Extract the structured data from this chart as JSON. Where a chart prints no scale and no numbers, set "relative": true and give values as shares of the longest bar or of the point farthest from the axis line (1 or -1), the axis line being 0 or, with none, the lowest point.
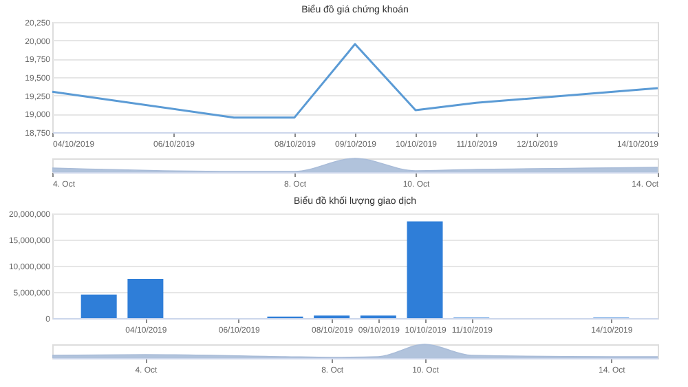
{
  "chart_data": [
    {
      "type": "line",
      "title": "Biểu đồ giá chứng khoán",
      "x": [
        "2019-10-04",
        "2019-10-07",
        "2019-10-08",
        "2019-10-09",
        "2019-10-10",
        "2019-10-11",
        "2019-10-14"
      ],
      "series": [
        {
          "color": "#5b9bd5",
          "values": [
            19300,
            18950,
            18950,
            19950,
            19050,
            19150,
            19350
          ]
        }
      ],
      "xlim": [
        "2019-10-04",
        "2019-10-14"
      ],
      "xticks": [
        {
          "value": "2019-10-04",
          "label": "04/10/2019"
        },
        {
          "value": "2019-10-06",
          "label": "06/10/2019"
        },
        {
          "value": "2019-10-08",
          "label": "08/10/2019"
        },
        {
          "value": "2019-10-09",
          "label": "09/10/2019"
        },
        {
          "value": "2019-10-10",
          "label": "10/10/2019"
        },
        {
          "value": "2019-10-11",
          "label": "11/10/2019"
        },
        {
          "value": "2019-10-12",
          "label": "12/10/2019"
        },
        {
          "value": "2019-10-14",
          "label": "14/10/2019"
        }
      ],
      "ylim": [
        18750,
        20250
      ],
      "yticks": [
        {
          "value": 18750,
          "label": "18,750"
        },
        {
          "value": 19000,
          "label": "19,000"
        },
        {
          "value": 19250,
          "label": "19,250"
        },
        {
          "value": 19500,
          "label": "19,500"
        },
        {
          "value": 19750,
          "label": "19,750"
        },
        {
          "value": 20000,
          "label": "20,000"
        },
        {
          "value": 20250,
          "label": "20,250"
        }
      ],
      "grid": "y"
    },
    {
      "type": "area",
      "relative": true,
      "x": [
        "2019-10-04",
        "2019-10-07",
        "2019-10-08",
        "2019-10-09",
        "2019-10-10",
        "2019-10-11",
        "2019-10-14"
      ],
      "series": [
        {
          "color": "#a9bcd8",
          "values": [
            0.3,
            0.05,
            0.05,
            1,
            0.1,
            0.2,
            0.35
          ]
        }
      ],
      "xlim": [
        "2019-10-04",
        "2019-10-14"
      ],
      "xticks": [
        {
          "value": "2019-10-04",
          "label": "4. Oct"
        },
        {
          "value": "2019-10-08",
          "label": "8. Oct"
        },
        {
          "value": "2019-10-10",
          "label": "10. Oct"
        },
        {
          "value": "2019-10-14",
          "label": "14. Oct"
        }
      ],
      "tick_labels": "x"
    },
    {
      "type": "bar",
      "title": "Biểu đồ khối lượng giao dịch",
      "x": [
        "2019-10-03",
        "2019-10-04",
        "2019-10-07",
        "2019-10-08",
        "2019-10-09",
        "2019-10-10",
        "2019-10-11",
        "2019-10-14"
      ],
      "series": [
        {
          "color": "#2f7ed8",
          "values": [
            4500000,
            7500000,
            300000,
            500000,
            500000,
            18500000,
            100000,
            100000
          ]
        }
      ],
      "xlim": [
        "2019-10-02",
        "2019-10-15"
      ],
      "xticks": [
        {
          "value": "2019-10-04",
          "label": "04/10/2019"
        },
        {
          "value": "2019-10-06",
          "label": "06/10/2019"
        },
        {
          "value": "2019-10-08",
          "label": "08/10/2019"
        },
        {
          "value": "2019-10-09",
          "label": "09/10/2019"
        },
        {
          "value": "2019-10-10",
          "label": "10/10/2019"
        },
        {
          "value": "2019-10-11",
          "label": "11/10/2019"
        },
        {
          "value": "2019-10-14",
          "label": "14/10/2019"
        }
      ],
      "ylim": [
        0,
        20000000
      ],
      "yticks": [
        0,
        {
          "value": 5000000,
          "label": "5,000,000"
        },
        {
          "value": 10000000,
          "label": "10,000,000"
        },
        {
          "value": 15000000,
          "label": "15,000,000"
        },
        {
          "value": 20000000,
          "label": "20,000,000"
        }
      ],
      "grid": "y"
    },
    {
      "type": "area",
      "relative": true,
      "x": [
        "2019-10-02",
        "2019-10-04",
        "2019-10-07",
        "2019-10-08",
        "2019-10-09",
        "2019-10-10",
        "2019-10-11",
        "2019-10-14",
        "2019-10-15"
      ],
      "series": [
        {
          "color": "#a9bcd8",
          "values": [
            0.2,
            0.25,
            0.1,
            0.05,
            0.1,
            1,
            0.2,
            0.1,
            0.1
          ]
        }
      ],
      "xlim": [
        "2019-10-02",
        "2019-10-15"
      ],
      "xticks": [
        {
          "value": "2019-10-04",
          "label": "4. Oct"
        },
        {
          "value": "2019-10-08",
          "label": "8. Oct"
        },
        {
          "value": "2019-10-10",
          "label": "10. Oct"
        },
        {
          "value": "2019-10-14",
          "label": "14. Oct"
        }
      ],
      "tick_labels": "x"
    }
  ]
}
